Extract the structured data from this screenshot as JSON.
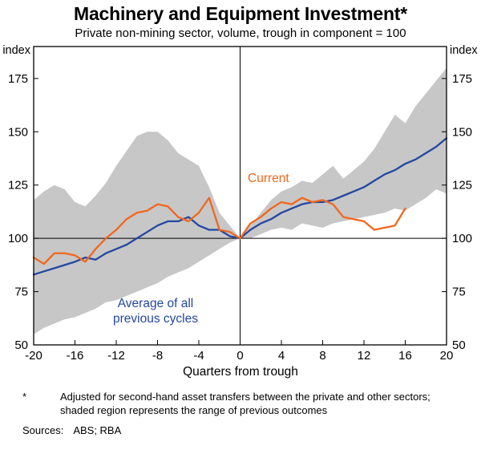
{
  "chart_data": {
    "type": "line",
    "title": "Machinery and Equipment Investment*",
    "subtitle": "Private non-mining sector, volume, trough in component = 100",
    "xlabel": "Quarters from trough",
    "y_unit": "index",
    "xlim": [
      -20,
      20
    ],
    "ylim": [
      50,
      190
    ],
    "x_ticks": [
      -20,
      -16,
      -12,
      -8,
      -4,
      0,
      4,
      8,
      12,
      16,
      20
    ],
    "y_ticks": [
      50,
      75,
      100,
      125,
      150,
      175
    ],
    "reference_line_y": 100,
    "vertical_line_x": 0,
    "grid": false,
    "x": [
      -20,
      -19,
      -18,
      -17,
      -16,
      -15,
      -14,
      -13,
      -12,
      -11,
      -10,
      -9,
      -8,
      -7,
      -6,
      -5,
      -4,
      -3,
      -2,
      -1,
      0,
      1,
      2,
      3,
      4,
      5,
      6,
      7,
      8,
      9,
      10,
      11,
      12,
      13,
      14,
      15,
      16,
      17,
      18,
      19,
      20
    ],
    "series": [
      {
        "name": "Average of all previous cycles",
        "label": "Average of all\nprevious cycles",
        "color": "#2447a1",
        "values": [
          83,
          84.5,
          86,
          87.5,
          89,
          91,
          90,
          93,
          95,
          97,
          100,
          103,
          106,
          108,
          108,
          110,
          106,
          104,
          104,
          101,
          100,
          104,
          107,
          109,
          112,
          114,
          116,
          117,
          117,
          118,
          120,
          122,
          124,
          127,
          130,
          132,
          135,
          137,
          140,
          143,
          147
        ]
      },
      {
        "name": "Current",
        "label": "Current",
        "color": "#f2671c",
        "values": [
          91,
          88,
          93,
          93,
          92,
          89,
          95,
          100,
          104,
          109,
          112,
          113,
          116,
          115,
          110,
          108,
          112,
          119,
          104,
          103,
          100,
          107,
          110,
          114,
          117,
          116,
          119,
          117,
          118,
          116,
          110,
          109,
          108,
          104,
          105,
          106,
          114,
          null,
          null,
          null,
          null
        ]
      }
    ],
    "band": {
      "name": "Range of previous outcomes",
      "color": "#c7c7c7",
      "upper": [
        118,
        122,
        125,
        123,
        117,
        115,
        120,
        126,
        134,
        141,
        148,
        150,
        150,
        146,
        140,
        137,
        134,
        124,
        112,
        106,
        100,
        106,
        112,
        118,
        122,
        124,
        127,
        126,
        130,
        134,
        128,
        132,
        136,
        142,
        150,
        158,
        154,
        162,
        168,
        174,
        180
      ],
      "lower": [
        55,
        58,
        60,
        62,
        63,
        65,
        67,
        70,
        71,
        73,
        75,
        77,
        79,
        82,
        84,
        86,
        89,
        92,
        95,
        98,
        100,
        100,
        102,
        104,
        105,
        104,
        107,
        106,
        105,
        107,
        108,
        109,
        110,
        111,
        112,
        114,
        113,
        116,
        119,
        123,
        121
      ]
    }
  },
  "footnote": {
    "marker": "*",
    "text": "Adjusted for second-hand asset transfers between the private and other sectors; shaded region represents the range of previous outcomes"
  },
  "sources": {
    "label": "Sources:",
    "text": "ABS; RBA"
  }
}
